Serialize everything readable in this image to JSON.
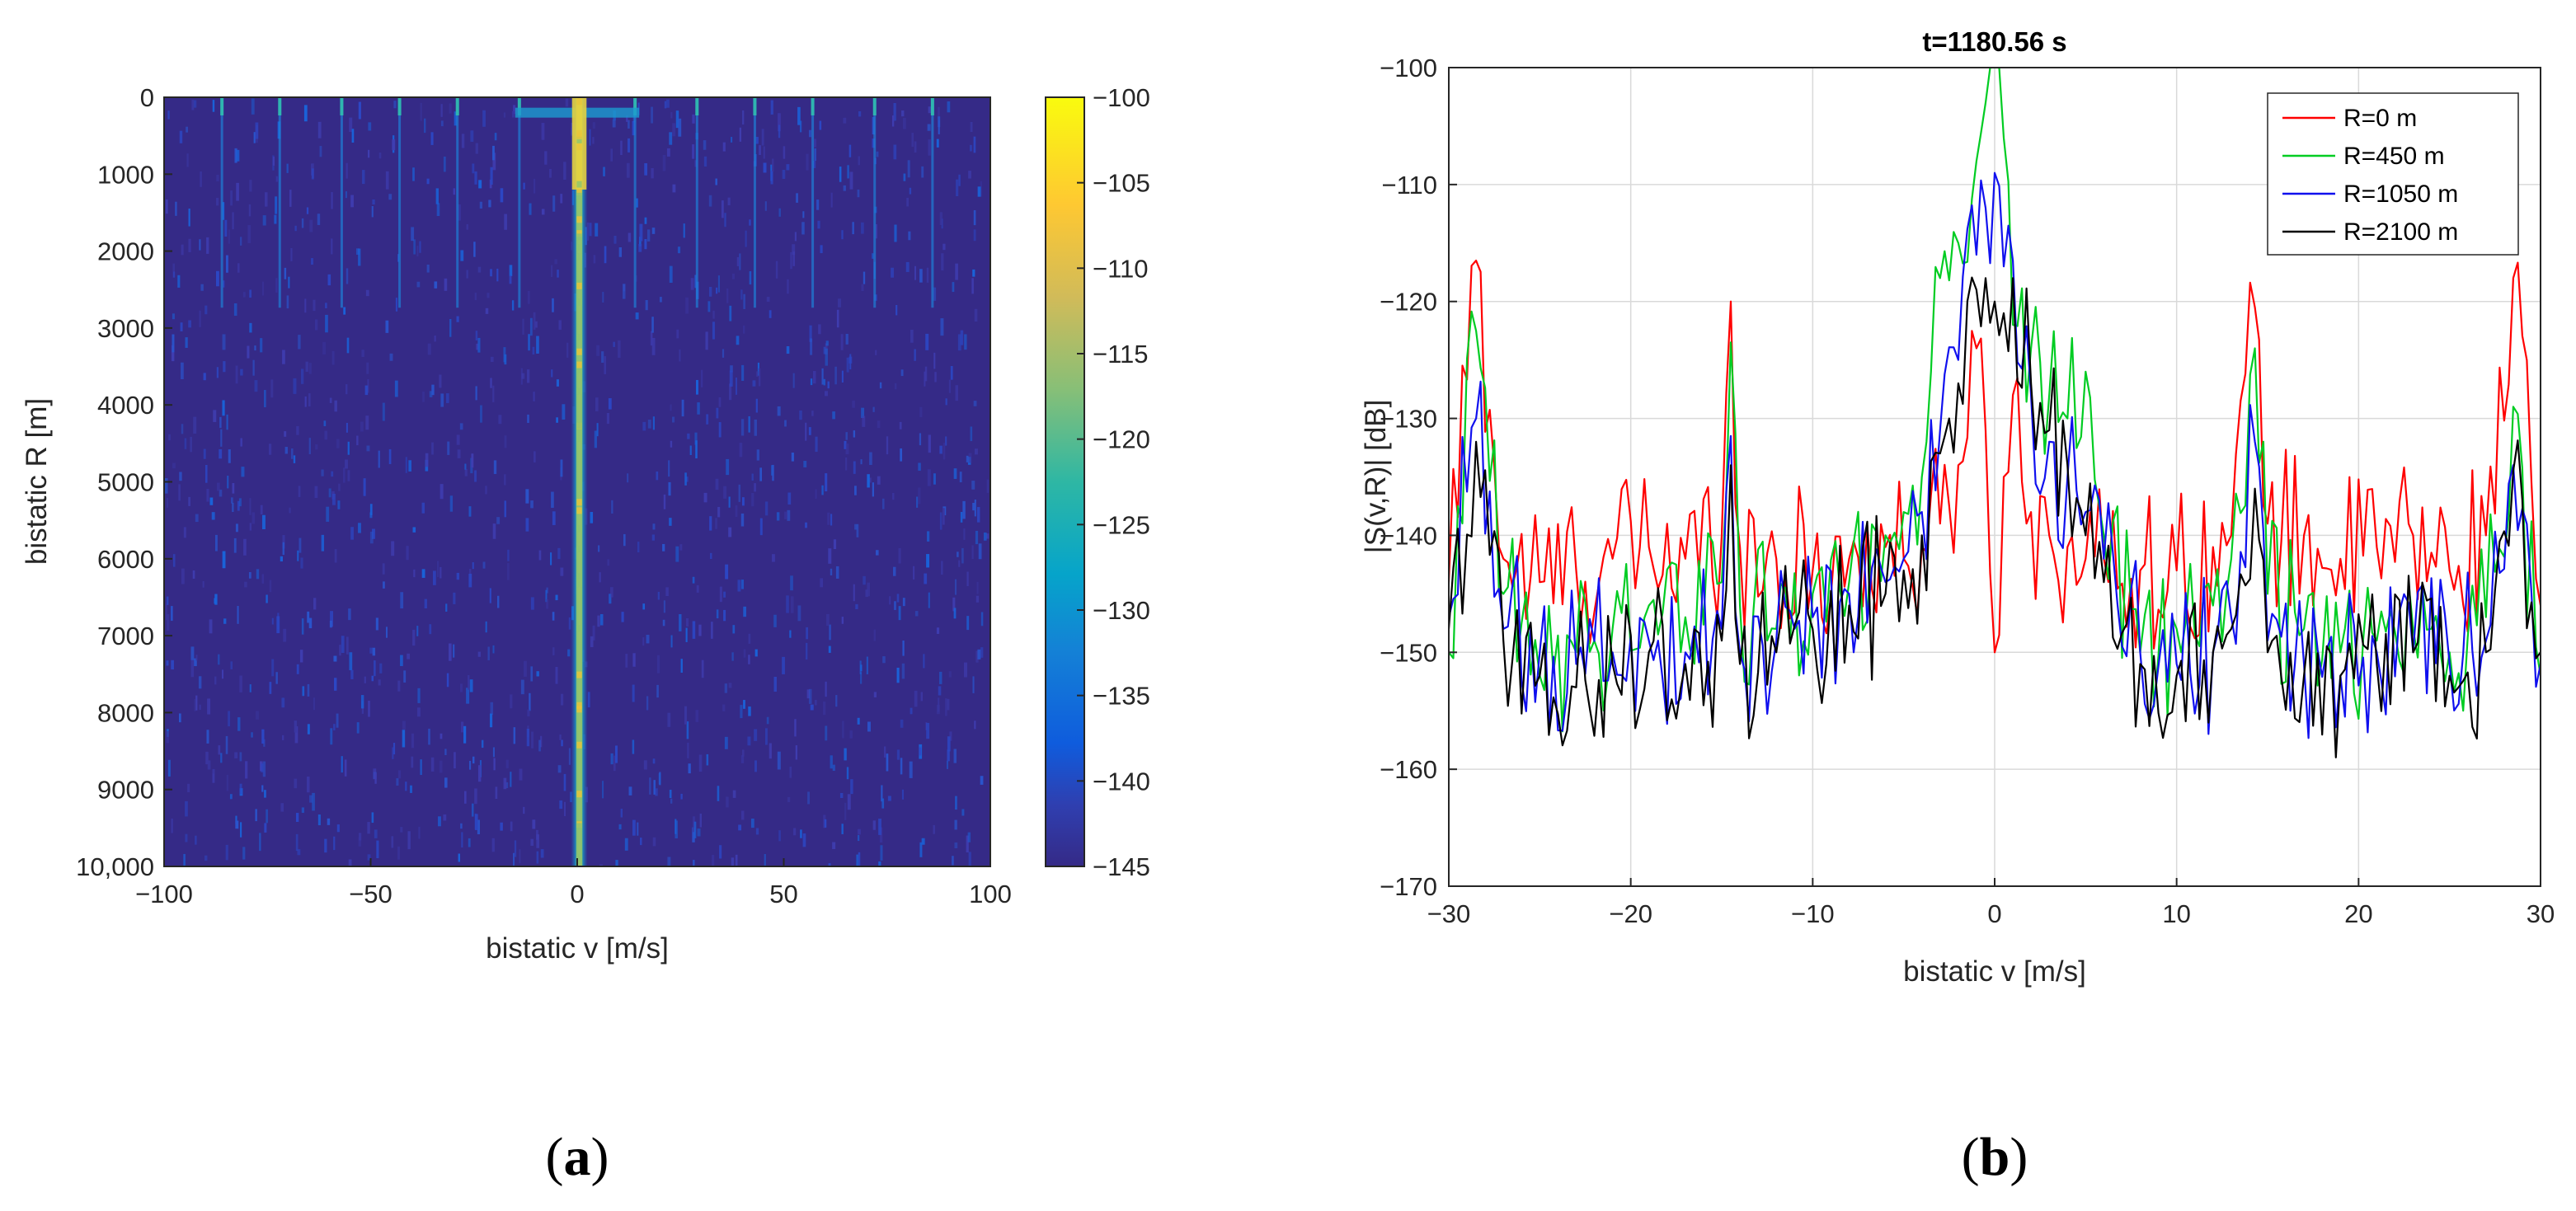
{
  "chart_data": [
    {
      "panel_label": "(a)",
      "panel_letter": "a",
      "type": "heatmap",
      "xlabel": "bistatic v [m/s]",
      "ylabel": "bistatic R [m]",
      "xlim": [
        -100,
        100
      ],
      "ylim": [
        0,
        10000
      ],
      "y_reversed": true,
      "x_ticks": [
        "−100",
        "−50",
        "0",
        "50",
        "100"
      ],
      "y_ticks": [
        "0",
        "1000",
        "2000",
        "3000",
        "4000",
        "5000",
        "6000",
        "7000",
        "8000",
        "9000",
        "10,000"
      ],
      "colorbar": {
        "range": [
          -145,
          -100
        ],
        "ticks": [
          "−100",
          "−105",
          "−110",
          "−115",
          "−120",
          "−125",
          "−130",
          "−135",
          "−140",
          "−145"
        ],
        "colormap": "parula"
      },
      "background_level_db": -143,
      "main_ridge": {
        "v": 0.5,
        "peak_db": -103,
        "width_m_s": 2.5
      },
      "vertical_streaks_v": [
        -86,
        -72,
        -57,
        -43,
        -29,
        -14,
        14,
        29,
        43,
        57,
        72,
        86
      ],
      "horizontal_streak": {
        "R": 200,
        "v_range": [
          -15,
          15
        ]
      },
      "colors": {
        "background": "#352a87",
        "axis": "#262626"
      }
    },
    {
      "panel_label": "(b)",
      "panel_letter": "b",
      "type": "line",
      "title": "t=1180.56 s",
      "xlabel": "bistatic v [m/s]",
      "ylabel": "|S(v,R)| [dB]",
      "xlim": [
        -30,
        30
      ],
      "ylim": [
        -170,
        -100
      ],
      "grid": true,
      "legend_position": "top-right",
      "x_ticks": [
        "−30",
        "−20",
        "−10",
        "0",
        "10",
        "20",
        "30"
      ],
      "y_ticks": [
        "−100",
        "−110",
        "−120",
        "−130",
        "−140",
        "−150",
        "−160",
        "−170"
      ],
      "x": [
        -30,
        -28.5,
        -27,
        -25,
        -23,
        -21,
        -19,
        -17,
        -15,
        -14.5,
        -14,
        -12,
        -10,
        -8,
        -6,
        -5,
        -4,
        -3,
        -2,
        -1,
        -0.5,
        0,
        0.5,
        1,
        2,
        3,
        4,
        5,
        6,
        8,
        10,
        12,
        13,
        14.3,
        15,
        17,
        19,
        21,
        23,
        25,
        27,
        28.5,
        30
      ],
      "series": [
        {
          "name": "R=0 m",
          "color": "#ff0000",
          "values": [
            -144,
            -116.5,
            -142,
            -144,
            -143,
            -142,
            -141,
            -142,
            -140,
            -120,
            -141,
            -142,
            -143,
            -142,
            -141,
            -142,
            -141,
            -139,
            -134,
            -124,
            -131,
            -150,
            -135,
            -128,
            -138,
            -140,
            -141,
            -142,
            -142,
            -143,
            -143,
            -141,
            -140,
            -120.5,
            -139,
            -140,
            -142,
            -141,
            -140,
            -143,
            -140,
            -118,
            -146
          ]
        },
        {
          "name": "R=450 m",
          "color": "#00cc22",
          "values": [
            -150,
            -122.5,
            -145,
            -152,
            -150,
            -148,
            -146,
            -147,
            -144,
            -123.5,
            -146,
            -148,
            -145,
            -144,
            -140,
            -138,
            -135,
            -118,
            -115,
            -108,
            -103,
            -100,
            -106,
            -122,
            -124,
            -128,
            -130,
            -126,
            -140,
            -150,
            -148,
            -146,
            -142,
            -124,
            -145,
            -148,
            -150,
            -149,
            -148,
            -150,
            -147,
            -129,
            -152
          ]
        },
        {
          "name": "R=1050 m",
          "color": "#1010ee",
          "values": [
            -147,
            -130,
            -148,
            -150,
            -151,
            -150,
            -149,
            -150,
            -148,
            -131.5,
            -150,
            -149,
            -147,
            -145,
            -144,
            -142,
            -138,
            -131,
            -125,
            -116,
            -112,
            -109,
            -117,
            -116.5,
            -128,
            -132,
            -135,
            -138,
            -142,
            -150,
            -151,
            -150,
            -147,
            -132,
            -149,
            -151,
            -152,
            -150,
            -150,
            -151,
            -149,
            -134,
            -151
          ]
        },
        {
          "name": "R=2100 m",
          "color": "#000000",
          "values": [
            -148,
            -132,
            -149,
            -152,
            -153,
            -151,
            -150,
            -151,
            -149,
            -134,
            -151,
            -150,
            -148,
            -146,
            -145,
            -143,
            -140,
            -133,
            -127,
            -119,
            -118,
            -120,
            -121,
            -118,
            -127,
            -131,
            -134,
            -140,
            -144,
            -151,
            -152,
            -150,
            -148,
            -136,
            -150,
            -152,
            -152,
            -151,
            -150,
            -152,
            -150,
            -134.5,
            -150
          ]
        }
      ],
      "colors": {
        "grid": "#d9d9d9",
        "axis": "#262626"
      }
    }
  ]
}
